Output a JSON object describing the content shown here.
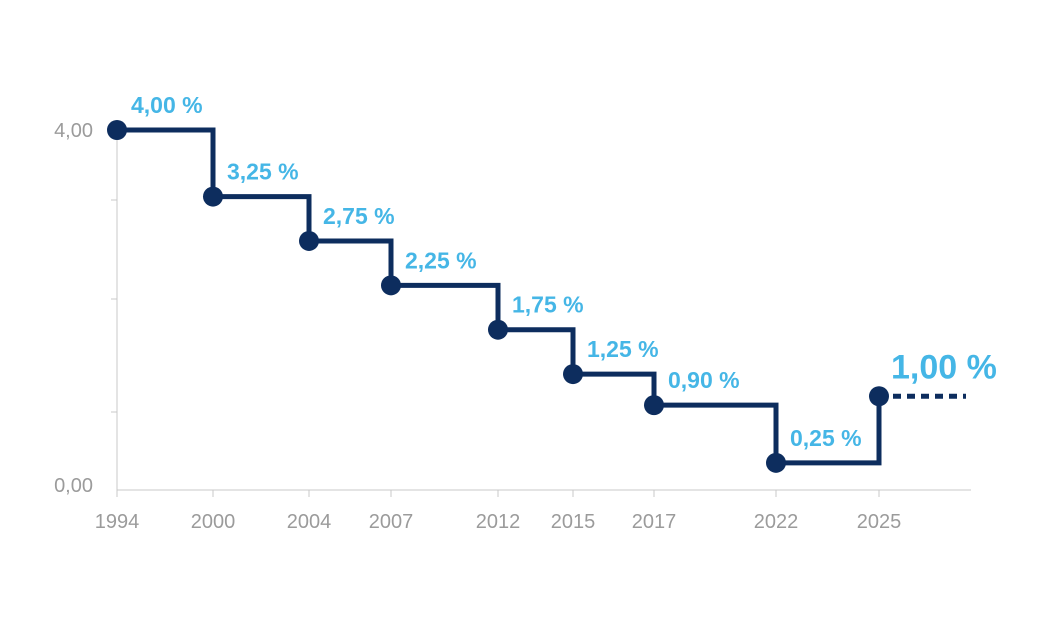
{
  "chart_data": {
    "type": "line",
    "step": true,
    "title": "",
    "xlabel": "",
    "ylabel": "",
    "x_ticks": [
      "1994",
      "2000",
      "2004",
      "2007",
      "2012",
      "2015",
      "2017",
      "2022",
      "2025"
    ],
    "y_ticks": [
      "4,00",
      "0,00"
    ],
    "ylim": [
      0,
      4
    ],
    "grid": false,
    "series": [
      {
        "points": [
          {
            "x": 1994,
            "y": 4.0,
            "label": "4,00 %"
          },
          {
            "x": 2000,
            "y": 3.25,
            "label": "3,25 %"
          },
          {
            "x": 2004,
            "y": 2.75,
            "label": "2,75 %"
          },
          {
            "x": 2007,
            "y": 2.25,
            "label": "2,25 %"
          },
          {
            "x": 2012,
            "y": 1.75,
            "label": "1,75 %"
          },
          {
            "x": 2015,
            "y": 1.25,
            "label": "1,25 %"
          },
          {
            "x": 2017,
            "y": 0.9,
            "label": "0,90 %"
          },
          {
            "x": 2022,
            "y": 0.25,
            "label": "0,25 %"
          },
          {
            "x": 2025,
            "y": 1.0,
            "label": "1,00 %"
          }
        ]
      }
    ],
    "colors": {
      "line": "#0d2d5e",
      "labels": "#45b6e6",
      "axis": "#c8c8c8",
      "tick_text": "#9b9b9b"
    }
  }
}
